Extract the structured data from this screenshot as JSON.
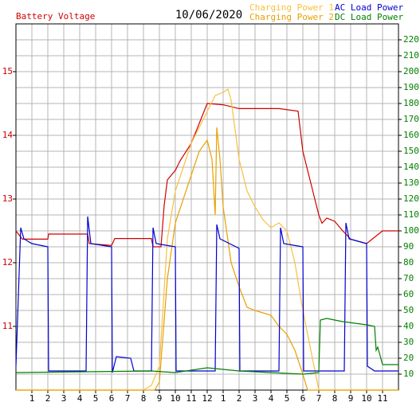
{
  "chart_data": {
    "type": "line",
    "title": "10/06/2020",
    "xlim": [
      0,
      24
    ],
    "xticks": [
      1,
      2,
      3,
      4,
      5,
      6,
      7,
      8,
      9,
      10,
      11,
      12,
      {
        "value": 13,
        "label": "1"
      },
      {
        "value": 14,
        "label": "2"
      },
      {
        "value": 15,
        "label": "3"
      },
      {
        "value": 16,
        "label": "4"
      },
      {
        "value": 17,
        "label": "5"
      },
      {
        "value": 18,
        "label": "6"
      },
      {
        "value": 19,
        "label": "7"
      },
      {
        "value": 20,
        "label": "8"
      },
      {
        "value": 21,
        "label": "9"
      },
      {
        "value": 22,
        "label": "10"
      },
      {
        "value": 23,
        "label": "11"
      }
    ],
    "ylim": [
      10,
      15.75
    ],
    "yticks": [
      11,
      12,
      13,
      14,
      15
    ],
    "ycolor": "#d00000",
    "y2lim": [
      0,
      230
    ],
    "y2ticks": [
      10,
      20,
      30,
      40,
      50,
      60,
      70,
      80,
      90,
      100,
      110,
      120,
      130,
      140,
      150,
      160,
      170,
      180,
      190,
      200,
      210,
      220
    ],
    "y2color": "#008000",
    "grid": true,
    "series": [
      {
        "name": "Battery Voltage",
        "color": "#d00000",
        "axis": "y",
        "x": [
          0,
          0.4,
          2,
          2.05,
          4.5,
          4.6,
          6,
          6.2,
          8.5,
          8.6,
          9.1,
          9.3,
          9.5,
          10,
          10.3,
          11,
          12,
          13,
          14,
          16.5,
          17.7,
          18,
          18.5,
          19,
          19.2,
          19.5,
          20,
          20.5,
          21,
          22,
          22.5,
          23,
          24
        ],
        "values": [
          12.5,
          12.37,
          12.37,
          12.45,
          12.45,
          12.3,
          12.27,
          12.38,
          12.38,
          12.25,
          12.25,
          12.9,
          13.3,
          13.45,
          13.6,
          13.875,
          14.5,
          14.48,
          14.42,
          14.42,
          14.38,
          13.75,
          13.25,
          12.75,
          12.62,
          12.7,
          12.65,
          12.5,
          12.37,
          12.3,
          12.4,
          12.5,
          12.5
        ]
      },
      {
        "name": "Charging Power 1",
        "color": "#f8c040",
        "axis": "y2",
        "x": [
          0,
          8,
          8.5,
          9,
          9.5,
          10,
          11,
          12,
          12.5,
          13,
          13.3,
          13.5,
          14,
          14.5,
          15,
          15.5,
          16,
          16.5,
          17,
          17.5,
          18,
          18.5,
          19,
          24
        ],
        "values": [
          0,
          0,
          3,
          15,
          95,
          125,
          155,
          175,
          185,
          187,
          189,
          182,
          145,
          125,
          115,
          107,
          102,
          105,
          100,
          80,
          50,
          25,
          0,
          0
        ]
      },
      {
        "name": "Charging Power 2",
        "color": "#e8a000",
        "axis": "y2",
        "x": [
          0,
          8.7,
          9,
          9.5,
          10,
          11,
          11.5,
          12,
          12.3,
          12.5,
          12.6,
          12.8,
          13,
          13.5,
          14,
          14.5,
          15,
          16,
          16.5,
          17,
          17.5,
          18,
          18.3,
          24
        ],
        "values": [
          0,
          0,
          5,
          70,
          105,
          135,
          150,
          157,
          145,
          110,
          165,
          145,
          115,
          80,
          65,
          52,
          50,
          47,
          40,
          35,
          25,
          10,
          0,
          0
        ]
      },
      {
        "name": "AC Load Power",
        "color": "#0000d0",
        "axis": "y2",
        "x": [
          0,
          0.3,
          0.5,
          1,
          2,
          2.05,
          4.4,
          4.5,
          4.7,
          6,
          6.05,
          6.3,
          7.2,
          7.4,
          8.5,
          8.6,
          8.8,
          10,
          10.05,
          12.5,
          12.6,
          12.8,
          14,
          14.05,
          16.5,
          16.6,
          16.8,
          18,
          18.05,
          20.6,
          20.7,
          20.9,
          22,
          22.05,
          22.5,
          24
        ],
        "values": [
          15,
          102,
          95,
          92,
          90,
          12,
          12,
          109,
          92,
          90,
          11,
          21,
          20,
          12,
          12,
          102,
          92,
          90,
          12,
          12,
          104,
          95,
          89,
          12,
          12,
          102,
          92,
          90,
          12,
          12,
          105,
          95,
          92,
          15,
          12,
          12
        ]
      },
      {
        "name": "DC Load Power",
        "color": "#008000",
        "axis": "y2",
        "x": [
          0,
          8.5,
          10,
          12,
          13,
          14,
          18,
          19,
          19.1,
          19.5,
          20.5,
          22,
          22.5,
          22.6,
          22.7,
          23,
          24
        ],
        "values": [
          11,
          12,
          11,
          14,
          13,
          12,
          10,
          11,
          44,
          45,
          43,
          41,
          40,
          25,
          27,
          16,
          16
        ]
      }
    ]
  }
}
